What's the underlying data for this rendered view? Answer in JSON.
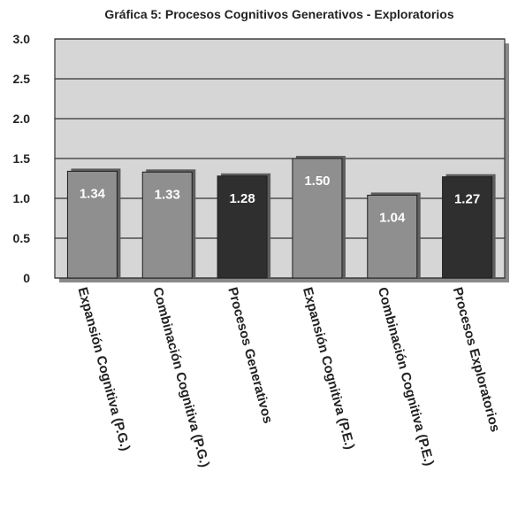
{
  "chart_data": {
    "type": "bar",
    "title": "Gráfica 5: Procesos Cognitivos Generativos - Exploratorios",
    "xlabel": "",
    "ylabel": "",
    "ylim": [
      0,
      3.0
    ],
    "yticks": [
      "0",
      "0.5",
      "1.0",
      "1.5",
      "2.0",
      "2.5",
      "3.0"
    ],
    "ytick_values": [
      0,
      0.5,
      1.0,
      1.5,
      2.0,
      2.5,
      3.0
    ],
    "grid": true,
    "legend": "none",
    "categories": [
      "Expansión Cognitiva (P.G.)",
      "Combinación Cognitiva (P.G.)",
      "Procesos Generativos",
      "Expansión Cognitiva (P.E.)",
      "Combinación Cognitiva (P.E.)",
      "Procesos Exploratorios"
    ],
    "values": [
      1.34,
      1.33,
      1.28,
      1.5,
      1.04,
      1.27
    ],
    "value_labels": [
      "1.34",
      "1.33",
      "1.28",
      "1.50",
      "1.04",
      "1.27"
    ],
    "bar_colors": [
      "#8f8f8f",
      "#8f8f8f",
      "#2f2f2f",
      "#8f8f8f",
      "#8f8f8f",
      "#2f2f2f"
    ],
    "plot_background": "#d6d6d6",
    "grid_color": "#333333",
    "axis_text_color": "#222222",
    "value_label_color": "#ffffff"
  }
}
